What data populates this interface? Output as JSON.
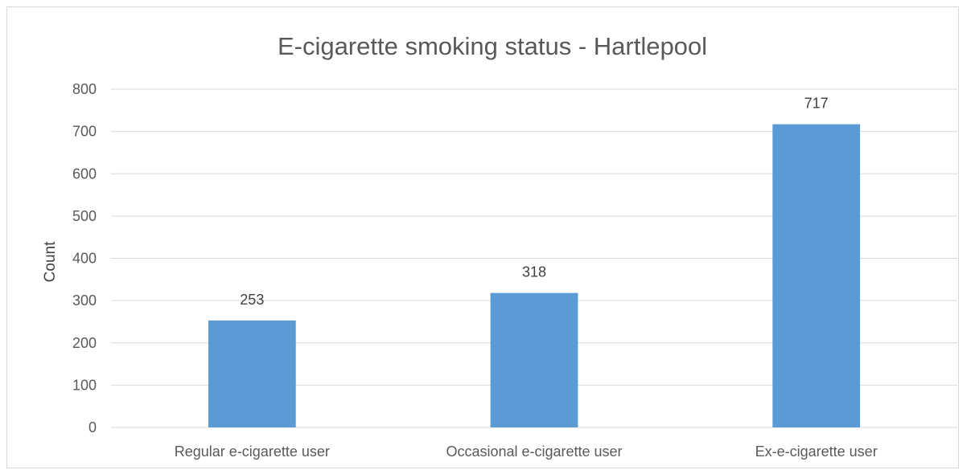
{
  "chart_data": {
    "type": "bar",
    "title": "E-cigarette smoking status - Hartlepool",
    "xlabel": "",
    "ylabel": "Count",
    "categories": [
      "Regular e-cigarette user",
      "Occasional e-cigarette user",
      "Ex-e-cigarette user"
    ],
    "values": [
      253,
      318,
      717
    ],
    "data_labels": [
      "253",
      "318",
      "717"
    ],
    "ylim": [
      0,
      800
    ],
    "yticks": [
      0,
      100,
      200,
      300,
      400,
      500,
      600,
      700,
      800
    ],
    "grid": true,
    "legend": "none",
    "bar_color": "#5b9bd5"
  }
}
